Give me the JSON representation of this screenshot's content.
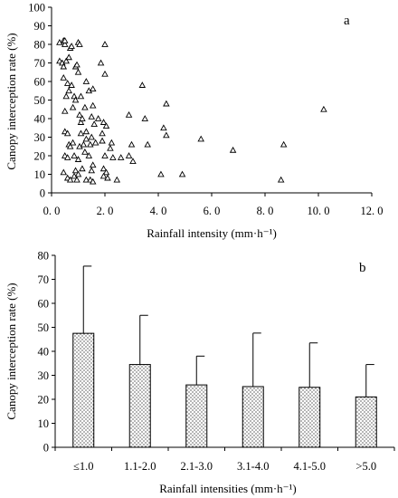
{
  "chart_data": [
    {
      "type": "scatter",
      "panel_label": "a",
      "xlabel": "Rainfall intensity (mm·h⁻¹)",
      "ylabel": "Canopy interception rate  (%)",
      "xlim": [
        0,
        12
      ],
      "ylim": [
        0,
        100
      ],
      "x_ticks": [
        0,
        2,
        4,
        6,
        8,
        10,
        12
      ],
      "x_tick_labels": [
        "0. 0",
        "2. 0",
        "4. 0",
        "6. 0",
        "8. 0",
        "10. 0",
        "12. 0"
      ],
      "y_ticks": [
        0,
        10,
        20,
        30,
        40,
        50,
        60,
        70,
        80,
        90,
        100
      ],
      "y_tick_labels": [
        "0",
        "10",
        "20",
        "30",
        "40",
        "50",
        "60",
        "70",
        "80",
        "90",
        "100"
      ],
      "grid": false,
      "marker": "open-triangle",
      "points": [
        [
          0.3,
          81
        ],
        [
          0.45,
          82
        ],
        [
          0.5,
          80
        ],
        [
          0.5,
          82
        ],
        [
          0.7,
          78
        ],
        [
          0.75,
          79
        ],
        [
          1.0,
          81
        ],
        [
          1.05,
          80
        ],
        [
          2.0,
          80
        ],
        [
          0.3,
          71
        ],
        [
          0.4,
          70
        ],
        [
          0.45,
          68
        ],
        [
          0.55,
          71
        ],
        [
          0.65,
          73
        ],
        [
          0.9,
          68
        ],
        [
          0.95,
          69
        ],
        [
          1.0,
          65
        ],
        [
          1.85,
          70
        ],
        [
          2.0,
          64
        ],
        [
          0.45,
          62
        ],
        [
          0.6,
          59
        ],
        [
          0.65,
          55
        ],
        [
          0.75,
          58
        ],
        [
          0.85,
          52
        ],
        [
          1.3,
          60
        ],
        [
          1.4,
          55
        ],
        [
          1.55,
          56
        ],
        [
          3.4,
          58
        ],
        [
          0.55,
          52
        ],
        [
          0.9,
          50
        ],
        [
          1.1,
          52
        ],
        [
          0.8,
          46
        ],
        [
          1.25,
          46
        ],
        [
          1.55,
          47
        ],
        [
          4.3,
          48
        ],
        [
          10.2,
          45
        ],
        [
          0.5,
          44
        ],
        [
          1.05,
          42
        ],
        [
          1.1,
          38
        ],
        [
          1.15,
          40
        ],
        [
          1.5,
          41
        ],
        [
          1.6,
          37
        ],
        [
          1.75,
          40
        ],
        [
          1.95,
          38
        ],
        [
          2.05,
          36
        ],
        [
          2.9,
          42
        ],
        [
          3.5,
          40
        ],
        [
          4.2,
          35
        ],
        [
          0.5,
          33
        ],
        [
          0.6,
          32
        ],
        [
          1.1,
          32
        ],
        [
          1.3,
          33
        ],
        [
          1.5,
          30
        ],
        [
          1.9,
          32
        ],
        [
          3.6,
          26
        ],
        [
          0.65,
          26
        ],
        [
          0.7,
          25
        ],
        [
          0.8,
          27
        ],
        [
          1.05,
          25
        ],
        [
          1.2,
          26
        ],
        [
          1.3,
          29
        ],
        [
          1.45,
          26
        ],
        [
          1.65,
          27
        ],
        [
          1.9,
          28
        ],
        [
          2.25,
          27
        ],
        [
          2.2,
          24
        ],
        [
          3.0,
          26
        ],
        [
          4.3,
          31
        ],
        [
          5.6,
          29
        ],
        [
          6.8,
          23
        ],
        [
          8.7,
          26
        ],
        [
          0.5,
          20
        ],
        [
          0.6,
          19
        ],
        [
          0.85,
          20
        ],
        [
          1.0,
          18
        ],
        [
          1.25,
          22
        ],
        [
          1.4,
          20
        ],
        [
          1.55,
          15
        ],
        [
          2.0,
          20
        ],
        [
          2.3,
          19
        ],
        [
          2.6,
          19
        ],
        [
          2.9,
          20
        ],
        [
          3.05,
          17
        ],
        [
          0.45,
          11
        ],
        [
          0.9,
          12
        ],
        [
          1.15,
          13
        ],
        [
          1.5,
          12
        ],
        [
          1.95,
          13
        ],
        [
          2.05,
          11
        ],
        [
          4.1,
          10
        ],
        [
          4.9,
          10
        ],
        [
          0.6,
          8
        ],
        [
          0.7,
          7
        ],
        [
          0.85,
          9
        ],
        [
          0.95,
          7
        ],
        [
          1.0,
          10
        ],
        [
          1.3,
          7
        ],
        [
          1.45,
          7
        ],
        [
          1.55,
          6
        ],
        [
          1.95,
          9
        ],
        [
          2.1,
          8
        ],
        [
          2.45,
          7
        ],
        [
          8.6,
          7
        ]
      ]
    },
    {
      "type": "bar",
      "panel_label": "b",
      "xlabel": "Rainfall intensities (mm·h⁻¹)",
      "ylabel": "Canopy interception rate  (%)",
      "categories": [
        "≤1.0",
        "1.1-2.0",
        "2.1-3.0",
        "3.1-4.0",
        "4.1-5.0",
        ">5.0"
      ],
      "values": [
        47.5,
        34.5,
        26,
        25.3,
        25,
        21
      ],
      "error_plus": [
        28,
        20.5,
        12,
        22.3,
        18.5,
        13.5
      ],
      "ylim": [
        0,
        80
      ],
      "y_ticks": [
        0,
        10,
        20,
        30,
        40,
        50,
        60,
        70,
        80
      ],
      "y_tick_labels": [
        "0",
        "10",
        "20",
        "30",
        "40",
        "50",
        "60",
        "70",
        "80"
      ],
      "grid": false,
      "bar_fill": "dotted",
      "colors": {
        "ink": "#000000",
        "bar_fill_bg": "#ffffff",
        "bar_dot": "#000000"
      }
    }
  ]
}
